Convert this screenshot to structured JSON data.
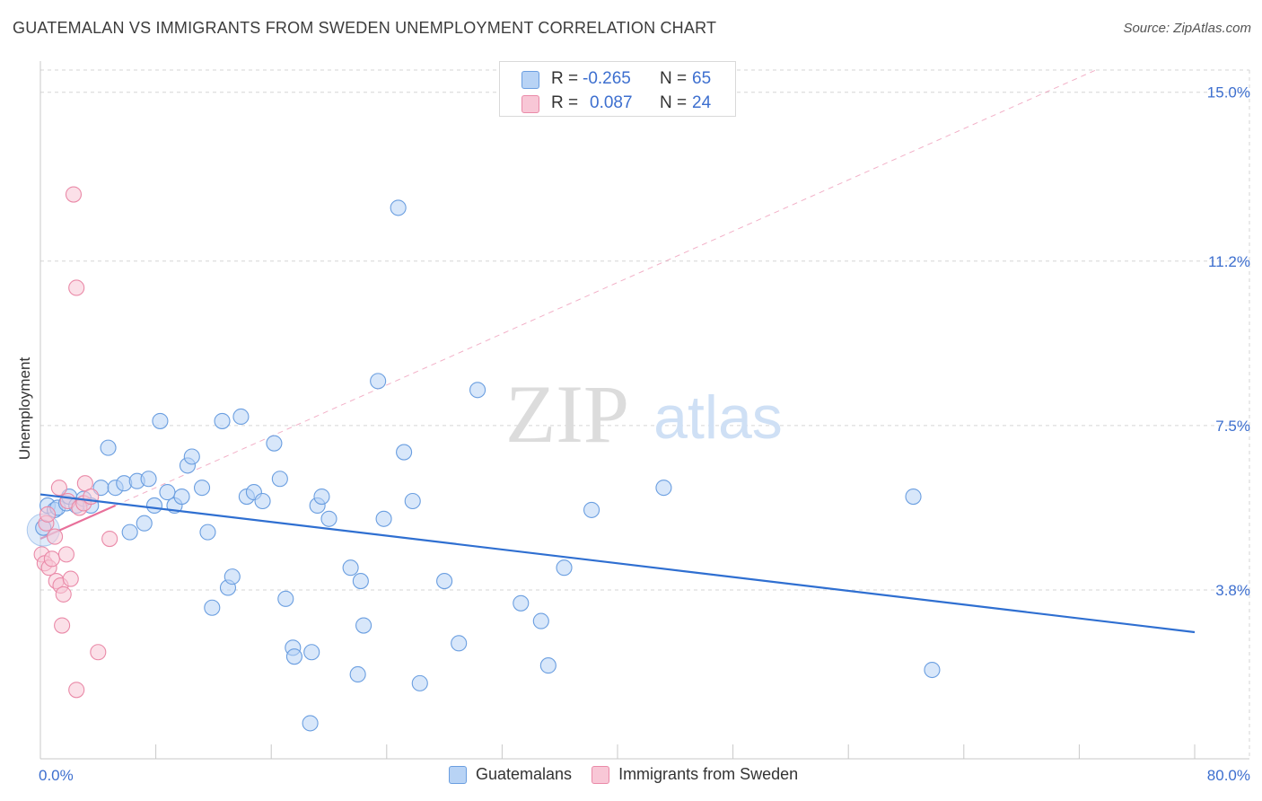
{
  "header": {
    "title": "GUATEMALAN VS IMMIGRANTS FROM SWEDEN UNEMPLOYMENT CORRELATION CHART",
    "source": "Source: ZipAtlas.com"
  },
  "watermark": {
    "zip": "ZIP",
    "atlas": "atlas"
  },
  "legend": {
    "rows": [
      {
        "r_label": "R =",
        "r_value": "-0.265",
        "n_label": "N =",
        "n_value": "65"
      },
      {
        "r_label": "R =",
        "r_value": "0.087",
        "n_label": "N =",
        "n_value": "24"
      }
    ],
    "series_labels": [
      "Guatemalans",
      "Immigrants from Sweden"
    ]
  },
  "colors": {
    "blue_fill": "#b8d3f5",
    "blue_stroke": "#6a9ee0",
    "blue_line": "#2f6fd1",
    "pink_fill": "#f8c7d6",
    "pink_stroke": "#ea8aa8",
    "pink_line": "#e8709a",
    "axis_text": "#3d6fcf",
    "grid": "#d5d5d5"
  },
  "chart_data": {
    "type": "scatter",
    "title": "GUATEMALAN VS IMMIGRANTS FROM SWEDEN UNEMPLOYMENT CORRELATION CHART",
    "xlabel": "",
    "ylabel": "Unemployment",
    "xlim": [
      0,
      80
    ],
    "ylim": [
      0,
      15.5
    ],
    "x_tick_labels": [
      "0.0%",
      "80.0%"
    ],
    "y_ticks": [
      3.8,
      7.5,
      11.2,
      15.0
    ],
    "y_tick_labels": [
      "3.8%",
      "7.5%",
      "11.2%",
      "15.0%"
    ],
    "grid": true,
    "legend_position": "top-center",
    "series": [
      {
        "name": "Guatemalans",
        "r": -0.265,
        "n": 65,
        "trend": {
          "x": [
            0,
            80
          ],
          "y": [
            5.95,
            2.85
          ]
        },
        "points": [
          [
            0.2,
            5.2
          ],
          [
            0.5,
            5.7
          ],
          [
            1.0,
            5.6
          ],
          [
            1.2,
            5.65
          ],
          [
            1.8,
            5.75
          ],
          [
            2.0,
            5.9
          ],
          [
            2.5,
            5.7
          ],
          [
            3.0,
            5.85
          ],
          [
            3.5,
            5.7
          ],
          [
            4.2,
            6.1
          ],
          [
            4.7,
            7.0
          ],
          [
            5.2,
            6.1
          ],
          [
            5.8,
            6.2
          ],
          [
            6.2,
            5.1
          ],
          [
            6.7,
            6.25
          ],
          [
            7.2,
            5.3
          ],
          [
            7.5,
            6.3
          ],
          [
            7.9,
            5.7
          ],
          [
            8.3,
            7.6
          ],
          [
            8.8,
            6.0
          ],
          [
            9.3,
            5.7
          ],
          [
            9.8,
            5.9
          ],
          [
            10.2,
            6.6
          ],
          [
            10.5,
            6.8
          ],
          [
            11.2,
            6.1
          ],
          [
            11.6,
            5.1
          ],
          [
            11.9,
            3.4
          ],
          [
            12.6,
            7.6
          ],
          [
            13.0,
            3.85
          ],
          [
            13.3,
            4.1
          ],
          [
            13.9,
            7.7
          ],
          [
            14.3,
            5.9
          ],
          [
            14.8,
            6.0
          ],
          [
            15.4,
            5.8
          ],
          [
            16.2,
            7.1
          ],
          [
            16.6,
            6.3
          ],
          [
            17.0,
            3.6
          ],
          [
            17.5,
            2.5
          ],
          [
            17.6,
            2.3
          ],
          [
            18.7,
            0.8
          ],
          [
            18.8,
            2.4
          ],
          [
            19.2,
            5.7
          ],
          [
            19.5,
            5.9
          ],
          [
            20.0,
            5.4
          ],
          [
            21.5,
            4.3
          ],
          [
            22.0,
            1.9
          ],
          [
            22.2,
            4.0
          ],
          [
            22.4,
            3.0
          ],
          [
            23.4,
            8.5
          ],
          [
            23.8,
            5.4
          ],
          [
            24.8,
            12.4
          ],
          [
            25.2,
            6.9
          ],
          [
            25.8,
            5.8
          ],
          [
            26.3,
            1.7
          ],
          [
            28.0,
            4.0
          ],
          [
            29.0,
            2.6
          ],
          [
            30.3,
            8.3
          ],
          [
            33.3,
            3.5
          ],
          [
            34.7,
            3.1
          ],
          [
            35.2,
            2.1
          ],
          [
            36.3,
            4.3
          ],
          [
            38.2,
            5.6
          ],
          [
            43.2,
            6.1
          ],
          [
            60.5,
            5.9
          ],
          [
            61.8,
            2.0
          ]
        ]
      },
      {
        "name": "Immigrants from Sweden",
        "r": 0.087,
        "n": 24,
        "trend": {
          "x": [
            0,
            5.2
          ],
          "y": [
            4.95,
            5.7
          ]
        },
        "points": [
          [
            0.1,
            4.6
          ],
          [
            0.3,
            4.4
          ],
          [
            0.4,
            5.3
          ],
          [
            0.5,
            5.5
          ],
          [
            0.6,
            4.3
          ],
          [
            0.8,
            4.5
          ],
          [
            1.0,
            5.0
          ],
          [
            1.1,
            4.0
          ],
          [
            1.3,
            6.1
          ],
          [
            1.4,
            3.9
          ],
          [
            1.5,
            3.0
          ],
          [
            1.6,
            3.7
          ],
          [
            1.8,
            4.6
          ],
          [
            1.9,
            5.8
          ],
          [
            2.1,
            4.05
          ],
          [
            2.3,
            12.7
          ],
          [
            2.5,
            10.6
          ],
          [
            2.5,
            1.55
          ],
          [
            2.7,
            5.65
          ],
          [
            3.0,
            5.75
          ],
          [
            3.1,
            6.2
          ],
          [
            3.5,
            5.9
          ],
          [
            4.0,
            2.4
          ],
          [
            4.8,
            4.95
          ]
        ]
      }
    ]
  }
}
